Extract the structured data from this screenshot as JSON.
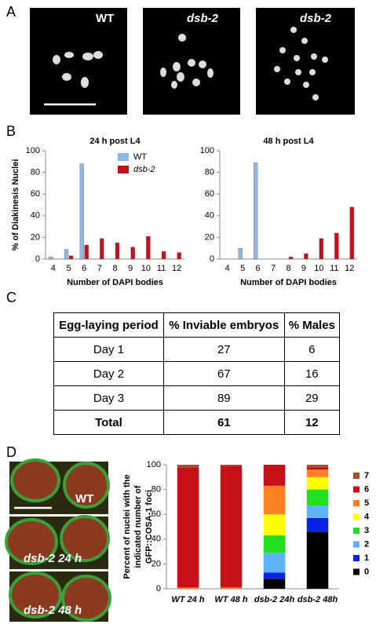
{
  "panels": [
    "A",
    "B",
    "C",
    "D"
  ],
  "images": {
    "a": [
      "WT",
      "dsb-2",
      "dsb-2"
    ],
    "d": [
      "WT",
      "dsb-2  24 h",
      "dsb-2  48 h"
    ]
  },
  "chart_data": [
    {
      "type": "bar",
      "title": "24 h post L4",
      "ylabel": "% of Diakinesis Nuclei",
      "xlabel": "Number of DAPI bodies",
      "categories": [
        4,
        5,
        6,
        7,
        8,
        9,
        10,
        11,
        12
      ],
      "series": [
        {
          "name": "WT",
          "color": "#8db8e3",
          "values": [
            2,
            9,
            88,
            0,
            0,
            0,
            0,
            0,
            0
          ]
        },
        {
          "name": "dsb-2",
          "color": "#c8101a",
          "values": [
            0,
            3,
            13,
            19,
            15,
            11,
            21,
            7,
            6
          ]
        }
      ],
      "ylim": [
        0,
        100
      ],
      "yticks": [
        0,
        20,
        40,
        60,
        80,
        100
      ],
      "legend": "upper right"
    },
    {
      "type": "bar",
      "title": "48 h post L4",
      "xlabel": "Number of DAPI bodies",
      "categories": [
        4,
        5,
        6,
        7,
        8,
        9,
        10,
        11,
        12
      ],
      "series": [
        {
          "name": "WT",
          "color": "#8db8e3",
          "values": [
            0,
            10,
            89,
            0,
            0,
            0,
            0,
            0,
            0
          ]
        },
        {
          "name": "dsb-2",
          "color": "#c8101a",
          "values": [
            0,
            0,
            0,
            0,
            2,
            5,
            19,
            24,
            48
          ]
        }
      ],
      "ylim": [
        0,
        100
      ],
      "yticks": [
        0,
        20,
        40,
        60,
        80,
        100
      ]
    },
    {
      "type": "stacked_bar",
      "ylabel": [
        "Percent of nuclei with the",
        "indicated number of",
        "GFP::COSA-1 foci"
      ],
      "categories": [
        "WT 24 h",
        "WT 48 h",
        "dsb-2 24h",
        "dsb-2 48h"
      ],
      "series": [
        {
          "name": "0",
          "color": "#000000",
          "values": [
            0,
            0,
            8,
            46
          ]
        },
        {
          "name": "1",
          "color": "#0a22e6",
          "values": [
            0,
            0,
            5,
            11
          ]
        },
        {
          "name": "2",
          "color": "#5db3f5",
          "values": [
            0,
            0,
            16,
            10
          ]
        },
        {
          "name": "3",
          "color": "#22dd22",
          "values": [
            0,
            0,
            14,
            13
          ]
        },
        {
          "name": "4",
          "color": "#ffff00",
          "values": [
            0,
            0,
            17,
            10
          ]
        },
        {
          "name": "5",
          "color": "#ff7f22",
          "values": [
            1,
            1,
            23,
            6
          ]
        },
        {
          "name": "6",
          "color": "#c8101a",
          "values": [
            97,
            98,
            17,
            2
          ]
        },
        {
          "name": "7",
          "color": "#a0522d",
          "values": [
            2,
            1,
            0,
            2
          ]
        }
      ],
      "ylim": [
        0,
        100
      ],
      "yticks": [
        0,
        20,
        40,
        60,
        80,
        100
      ],
      "legend": "right"
    }
  ],
  "table": {
    "header": [
      "Egg-laying period",
      "% Inviable embryos",
      "% Males"
    ],
    "rows": [
      [
        "Day 1",
        "27",
        "6"
      ],
      [
        "Day 2",
        "67",
        "16"
      ],
      [
        "Day 3",
        "89",
        "29"
      ],
      [
        "Total",
        "61",
        "12"
      ]
    ]
  }
}
